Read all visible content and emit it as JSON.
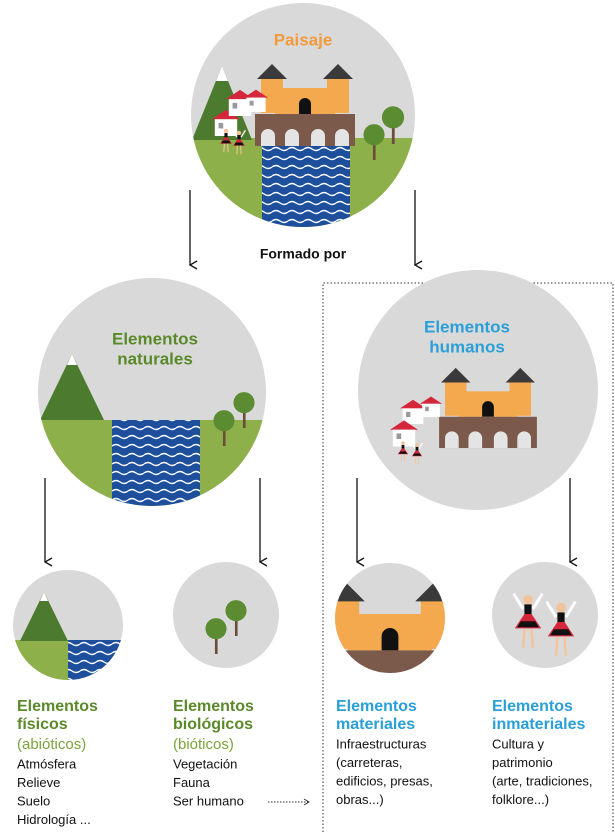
{
  "top": {
    "title": "Paisaje",
    "connector": "Formado por"
  },
  "groups": [
    {
      "title": [
        "Elementos",
        "naturales"
      ]
    },
    {
      "title": [
        "Elementos",
        "humanos"
      ]
    }
  ],
  "categories": [
    {
      "title": [
        "Elementos",
        "físicos"
      ],
      "subtitle": "(abióticos)",
      "items": [
        "Atmósfera",
        "Relieve",
        "Suelo",
        "Hidrología ..."
      ]
    },
    {
      "title": [
        "Elementos",
        "biológicos"
      ],
      "subtitle": "(bióticos)",
      "items": [
        "Vegetación",
        "Fauna",
        "Ser humano"
      ]
    },
    {
      "title": [
        "Elementos",
        "materiales"
      ],
      "items": [
        "Infraestructuras",
        "(carreteras,",
        "edificios, presas,",
        "obras...)"
      ]
    },
    {
      "title": [
        "Elementos",
        "inmateriales"
      ],
      "items": [
        "Cultura y",
        "patrimonio",
        "(arte, tradiciones,",
        "folklore...)"
      ]
    }
  ]
}
